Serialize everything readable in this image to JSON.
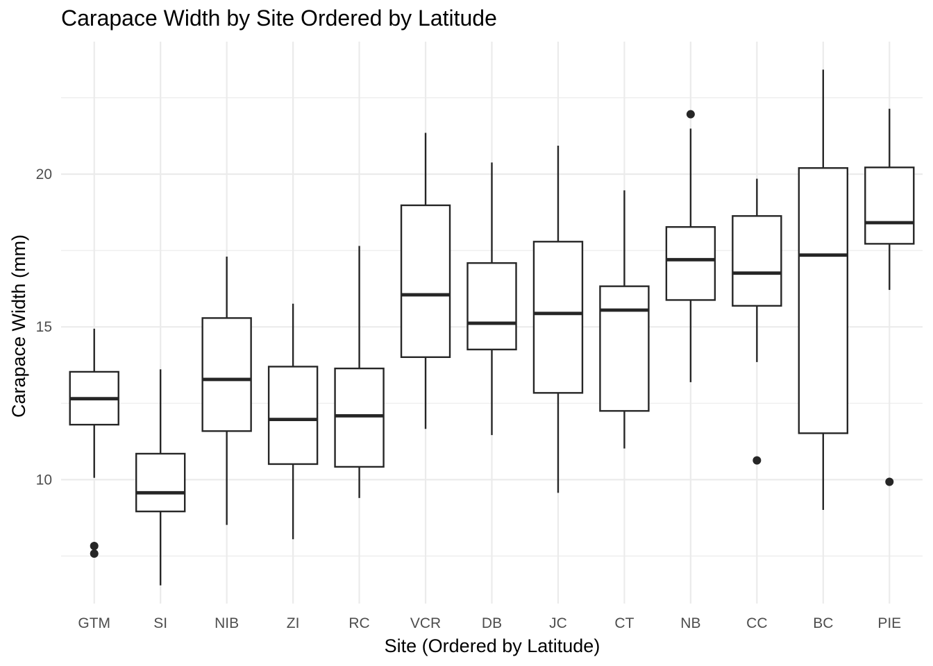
{
  "chart_data": {
    "type": "boxplot",
    "title": "Carapace Width by Site Ordered by Latitude",
    "xlabel": "Site (Ordered by Latitude)",
    "ylabel": "Carapace Width (mm)",
    "ylim": [
      6.1,
      24.5
    ],
    "yticks": [
      10,
      15,
      20
    ],
    "grid": true,
    "box_color": "#262626",
    "grid_color": "#ebebeb",
    "categories": [
      "GTM",
      "SI",
      "NIB",
      "ZI",
      "RC",
      "VCR",
      "DB",
      "JC",
      "CT",
      "NB",
      "CC",
      "BC",
      "PIE"
    ],
    "boxes": [
      {
        "site": "GTM",
        "whisker_low": 10.06,
        "q1": 11.8,
        "median": 12.65,
        "q3": 13.53,
        "whisker_high": 14.94,
        "outliers": [
          7.83,
          7.58
        ]
      },
      {
        "site": "SI",
        "whisker_low": 6.54,
        "q1": 8.96,
        "median": 9.57,
        "q3": 10.85,
        "whisker_high": 13.61,
        "outliers": []
      },
      {
        "site": "NIB",
        "whisker_low": 8.52,
        "q1": 11.59,
        "median": 13.28,
        "q3": 15.29,
        "whisker_high": 17.3,
        "outliers": []
      },
      {
        "site": "ZI",
        "whisker_low": 8.05,
        "q1": 10.51,
        "median": 11.97,
        "q3": 13.7,
        "whisker_high": 15.76,
        "outliers": []
      },
      {
        "site": "RC",
        "whisker_low": 9.4,
        "q1": 10.42,
        "median": 12.09,
        "q3": 13.64,
        "whisker_high": 17.65,
        "outliers": []
      },
      {
        "site": "VCR",
        "whisker_low": 11.66,
        "q1": 14.01,
        "median": 16.05,
        "q3": 18.98,
        "whisker_high": 21.35,
        "outliers": []
      },
      {
        "site": "DB",
        "whisker_low": 11.46,
        "q1": 14.26,
        "median": 15.12,
        "q3": 17.09,
        "whisker_high": 20.38,
        "outliers": []
      },
      {
        "site": "JC",
        "whisker_low": 9.57,
        "q1": 12.84,
        "median": 15.44,
        "q3": 17.79,
        "whisker_high": 20.93,
        "outliers": []
      },
      {
        "site": "CT",
        "whisker_low": 11.02,
        "q1": 12.25,
        "median": 15.55,
        "q3": 16.33,
        "whisker_high": 19.47,
        "outliers": []
      },
      {
        "site": "NB",
        "whisker_low": 13.19,
        "q1": 15.88,
        "median": 17.2,
        "q3": 18.27,
        "whisker_high": 21.49,
        "outliers": [
          21.96
        ]
      },
      {
        "site": "CC",
        "whisker_low": 13.85,
        "q1": 15.69,
        "median": 16.76,
        "q3": 18.63,
        "whisker_high": 19.85,
        "outliers": [
          10.63
        ]
      },
      {
        "site": "BC",
        "whisker_low": 9.01,
        "q1": 11.52,
        "median": 17.35,
        "q3": 20.2,
        "whisker_high": 23.42,
        "outliers": []
      },
      {
        "site": "PIE",
        "whisker_low": 16.21,
        "q1": 17.72,
        "median": 18.41,
        "q3": 20.22,
        "whisker_high": 22.14,
        "outliers": [
          9.93
        ]
      }
    ]
  }
}
